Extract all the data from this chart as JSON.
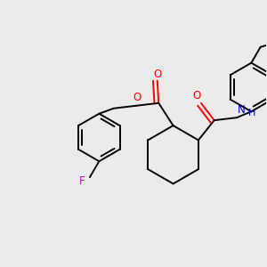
{
  "background_color": "#ebebeb",
  "line_color": "#000000",
  "O_color": "#ff0000",
  "N_color": "#0000cc",
  "F_color": "#cc00cc",
  "line_width": 1.4,
  "figsize": [
    3.0,
    3.0
  ],
  "dpi": 100,
  "xlim": [
    0,
    10
  ],
  "ylim": [
    0,
    10
  ]
}
